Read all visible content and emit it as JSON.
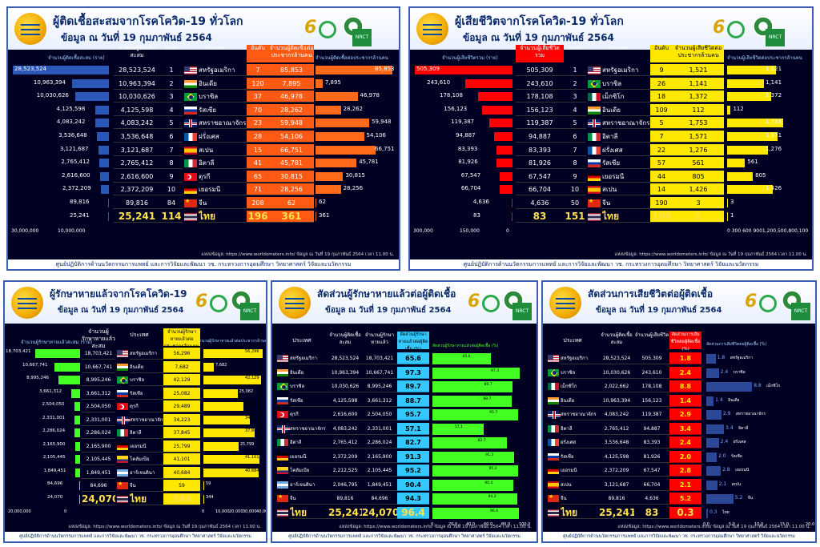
{
  "colors": {
    "panel_bg": "#000022",
    "blue_bar": "#2a58b8",
    "red_bar": "#ff0000",
    "orange_col": "#ff5a14",
    "yellow_bar": "#ffe800",
    "green_bar": "#44ff22",
    "cyan_col": "#33c8ff",
    "red_col": "#ff0000"
  },
  "flags": [
    "us",
    "in",
    "br",
    "ru",
    "gb",
    "fr",
    "es",
    "it",
    "tr",
    "de",
    "cn",
    "th",
    "mx",
    "co",
    "ar"
  ],
  "footer_text": "ศูนย์ปฏิบัติการด้านนวัตกรรมการแพทย์ และการวิจัยและพัฒนา วช. กระทรวงการอุดมศึกษา วิทยาศาสตร์ วิจัยและนวัตกรรม",
  "source_text": "แหล่งข้อมูล: https://www.worldometers.info/ ข้อมูล ณ วันที่ 19 กุมภาพันธ์ 2564 เวลา 11.00 น.",
  "date_text": "ข้อมูล ณ วันที่ 19 กุมภาพันธ์ 2564",
  "panel1": {
    "title": "ผู้ติดเชื้อสะสมจากโรคโควิด-19 ทั่วโลก",
    "col_cases": "จำนวนผู้ติดเชื้อสะสม",
    "col_rank": "อันดับ",
    "col_country": "ประเทศ",
    "col_rank2": "อันดับ",
    "col_per_m": "จำนวนผู้ติดเชื้อต่อประชากรล้านคน",
    "left_axis_title": "จำนวนผู้ติดเชื้อสะสม (ราย)",
    "right_axis_title": "จำนวนผู้ติดเชื้อต่อประชากรล้านคน",
    "left_ticks": [
      "30,000,000",
      "10,000,000"
    ],
    "rows": [
      {
        "cases": "28,523,524",
        "rank": "1",
        "country": "สหรัฐอเมริกา",
        "flag": "us",
        "rank2": "7",
        "perm": "85,853"
      },
      {
        "cases": "10,963,394",
        "rank": "2",
        "country": "อินเดีย",
        "flag": "in",
        "rank2": "120",
        "perm": "7,895"
      },
      {
        "cases": "10,030,626",
        "rank": "3",
        "country": "บราซิล",
        "flag": "br",
        "rank2": "37",
        "perm": "46,978"
      },
      {
        "cases": "4,125,598",
        "rank": "4",
        "country": "รัสเซีย",
        "flag": "ru",
        "rank2": "70",
        "perm": "28,262"
      },
      {
        "cases": "4,083,242",
        "rank": "5",
        "country": "สหราชอาณาจักร",
        "flag": "gb",
        "rank2": "23",
        "perm": "59,948"
      },
      {
        "cases": "3,536,648",
        "rank": "6",
        "country": "ฝรั่งเศส",
        "flag": "fr",
        "rank2": "28",
        "perm": "54,106"
      },
      {
        "cases": "3,121,687",
        "rank": "7",
        "country": "สเปน",
        "flag": "es",
        "rank2": "15",
        "perm": "66,751"
      },
      {
        "cases": "2,765,412",
        "rank": "8",
        "country": "อิตาลี",
        "flag": "it",
        "rank2": "41",
        "perm": "45,781"
      },
      {
        "cases": "2,616,600",
        "rank": "9",
        "country": "ตุรกี",
        "flag": "tr",
        "rank2": "65",
        "perm": "30,815"
      },
      {
        "cases": "2,372,209",
        "rank": "10",
        "country": "เยอรมนี",
        "flag": "de",
        "rank2": "71",
        "perm": "28,256"
      },
      {
        "cases": "89,816",
        "rank": "84",
        "country": "จีน",
        "flag": "cn",
        "rank2": "208",
        "perm": "62"
      },
      {
        "cases": "25,241",
        "rank": "114",
        "country": "ไทย",
        "flag": "th",
        "rank2": "196",
        "perm": "361"
      }
    ]
  },
  "panel2": {
    "title": "ผู้เสียชีวิตจากโรคโควิด-19 ทั่วโลก",
    "col_deaths": "จำนวนผู้เสียชีวิตรวม",
    "col_rank": "อันดับ",
    "col_country": "ประเทศ",
    "col_rank2": "อันดับ",
    "col_per_m": "จำนวนผู้เสียชีวิตต่อประชากรล้านคน",
    "left_axis_title": "จำนวนผู้เสียชีวิตรวม (ราย)",
    "right_axis_title": "จำนวนผู้เสียชีวิตต่อประชากรล้านคน",
    "left_ticks": [
      "300,000",
      "150,000",
      "0"
    ],
    "right_ticks": "0 300 600 9001,200,500,800,100",
    "rows": [
      {
        "deaths": "505,309",
        "rank": "1",
        "country": "สหรัฐอเมริกา",
        "flag": "us",
        "rank2": "9",
        "perm": "1,521"
      },
      {
        "deaths": "243,610",
        "rank": "2",
        "country": "บราซิล",
        "flag": "br",
        "rank2": "26",
        "perm": "1,141"
      },
      {
        "deaths": "178,108",
        "rank": "3",
        "country": "เม็กซิโก",
        "flag": "mx",
        "rank2": "18",
        "perm": "1,372"
      },
      {
        "deaths": "156,123",
        "rank": "4",
        "country": "อินเดีย",
        "flag": "in",
        "rank2": "109",
        "perm": "112"
      },
      {
        "deaths": "119,387",
        "rank": "5",
        "country": "สหราชอาณาจักร",
        "flag": "gb",
        "rank2": "5",
        "perm": "1,753"
      },
      {
        "deaths": "94,887",
        "rank": "6",
        "country": "อิตาลี",
        "flag": "it",
        "rank2": "7",
        "perm": "1,571"
      },
      {
        "deaths": "83,393",
        "rank": "7",
        "country": "ฝรั่งเศส",
        "flag": "fr",
        "rank2": "22",
        "perm": "1,276"
      },
      {
        "deaths": "81,926",
        "rank": "8",
        "country": "รัสเซีย",
        "flag": "ru",
        "rank2": "57",
        "perm": "561"
      },
      {
        "deaths": "67,547",
        "rank": "9",
        "country": "เยอรมนี",
        "flag": "de",
        "rank2": "44",
        "perm": "805"
      },
      {
        "deaths": "66,704",
        "rank": "10",
        "country": "สเปน",
        "flag": "es",
        "rank2": "14",
        "perm": "1,426"
      },
      {
        "deaths": "4,636",
        "rank": "50",
        "country": "จีน",
        "flag": "cn",
        "rank2": "190",
        "perm": "3"
      },
      {
        "deaths": "83",
        "rank": "151",
        "country": "ไทย",
        "flag": "th",
        "rank2": "194",
        "perm": "1"
      }
    ]
  },
  "panel3": {
    "title": "ผู้รักษาหายแล้วจากโรคโควิด-19",
    "col_rec": "จำนวนผู้รักษาหายแล้วสะสม",
    "col_country": "ประเทศ",
    "col_per_m": "จำนวนผู้รักษาหายแล้วต่อประชากรล้านคน",
    "left_axis_title": "จำนวนผู้รักษาหายแล้วสะสม (ราย)",
    "right_axis_title": "จำนวนผู้รักษาหายแล้วต่อประชากรล้านคน",
    "left_ticks": [
      "20,000,000",
      "0"
    ],
    "right_ticks": [
      "0",
      "10,000",
      "20,000",
      "30,000",
      "40,000"
    ],
    "rows": [
      {
        "rec": "18,703,421",
        "country": "สหรัฐอเมริกา",
        "flag": "us",
        "perm": "56,296"
      },
      {
        "rec": "10,667,741",
        "country": "อินเดีย",
        "flag": "in",
        "perm": "7,682"
      },
      {
        "rec": "8,995,246",
        "country": "บราซิล",
        "flag": "br",
        "perm": "42,129"
      },
      {
        "rec": "3,661,312",
        "country": "รัสเซีย",
        "flag": "ru",
        "perm": "25,082"
      },
      {
        "rec": "2,504,050",
        "country": "ตุรกี",
        "flag": "tr",
        "perm": "29,489"
      },
      {
        "rec": "2,331,001",
        "country": "สหราชอาณาจักร",
        "flag": "gb",
        "perm": "34,223"
      },
      {
        "rec": "2,286,024",
        "country": "อิตาลี",
        "flag": "it",
        "perm": "37,845"
      },
      {
        "rec": "2,165,900",
        "country": "เยอรมนี",
        "flag": "de",
        "perm": "25,799"
      },
      {
        "rec": "2,105,445",
        "country": "โคลัมเบีย",
        "flag": "co",
        "perm": "41,101"
      },
      {
        "rec": "1,849,451",
        "country": "อาร์เจนตินา",
        "flag": "ar",
        "perm": "40,684"
      },
      {
        "rec": "84,696",
        "country": "จีน",
        "flag": "cn",
        "perm": "59"
      },
      {
        "rec": "24,070",
        "country": "ไทย",
        "flag": "th",
        "perm": "344"
      }
    ]
  },
  "panel4": {
    "title": "สัดส่วนผู้รักษาหายแล้วต่อผู้ติดเชื้อ",
    "col_country": "ประเทศ",
    "col_cases": "จำนวนผู้ติดเชื้อสะสม",
    "col_rec": "จำนวนผู้รักษาหายแล้ว",
    "col_ratio": "สัดส่วนผู้รักษาหายแล้วต่อผู้ติดเชื้อ (%)",
    "chart_title": "สัดส่วนผู้รักษาหายแล้วต่อผู้ติดเชื้อ (%)",
    "ticks": [
      "0",
      "20.0",
      "40.0",
      "60.0",
      "80.0",
      "100.0"
    ],
    "rows": [
      {
        "country": "สหรัฐอเมริกา",
        "flag": "us",
        "cases": "28,523,524",
        "rec": "18,703,421",
        "ratio": "65.6"
      },
      {
        "country": "อินเดีย",
        "flag": "in",
        "cases": "10,963,394",
        "rec": "10,667,741",
        "ratio": "97.3"
      },
      {
        "country": "บราซิล",
        "flag": "br",
        "cases": "10,030,626",
        "rec": "8,995,246",
        "ratio": "89.7"
      },
      {
        "country": "รัสเซีย",
        "flag": "ru",
        "cases": "4,125,598",
        "rec": "3,661,312",
        "ratio": "88.7"
      },
      {
        "country": "ตุรกี",
        "flag": "tr",
        "cases": "2,616,600",
        "rec": "2,504,050",
        "ratio": "95.7"
      },
      {
        "country": "สหราชอาณาจักร",
        "flag": "gb",
        "cases": "4,083,242",
        "rec": "2,331,001",
        "ratio": "57.1"
      },
      {
        "country": "อิตาลี",
        "flag": "it",
        "cases": "2,765,412",
        "rec": "2,286,024",
        "ratio": "82.7"
      },
      {
        "country": "เยอรมนี",
        "flag": "de",
        "cases": "2,372,209",
        "rec": "2,165,900",
        "ratio": "91.3"
      },
      {
        "country": "โคลัมเบีย",
        "flag": "co",
        "cases": "2,212,525",
        "rec": "2,105,445",
        "ratio": "95.2"
      },
      {
        "country": "อาร์เจนตินา",
        "flag": "ar",
        "cases": "2,046,795",
        "rec": "1,849,451",
        "ratio": "90.4"
      },
      {
        "country": "จีน",
        "flag": "cn",
        "cases": "89,816",
        "rec": "84,696",
        "ratio": "94.3"
      },
      {
        "country": "ไทย",
        "flag": "th",
        "cases": "25,241",
        "rec": "24,070",
        "ratio": "96.4"
      }
    ]
  },
  "panel5": {
    "title": "สัดส่วนการเสียชีวิตต่อผู้ติดเชื้อ",
    "col_country": "ประเทศ",
    "col_cases": "จำนวนผู้ติดเชื้อสะสม",
    "col_deaths": "จำนวนผู้เสียชีวิต",
    "col_ratio": "สัดส่วนการเสียชีวิตต่อผู้ติดเชื้อ (%)",
    "chart_title": "สัดส่วนการเสียชีวิตต่อผู้ติดเชื้อ (%)",
    "ticks": [
      "0.0",
      "5.0",
      "10.0",
      "15.0",
      "20.0"
    ],
    "rows": [
      {
        "country": "สหรัฐอเมริกา",
        "flag": "us",
        "cases": "28,523,524",
        "deaths": "505,309",
        "ratio": "1.8"
      },
      {
        "country": "บราซิล",
        "flag": "br",
        "cases": "10,030,626",
        "deaths": "243,610",
        "ratio": "2.4"
      },
      {
        "country": "เม็กซิโก",
        "flag": "mx",
        "cases": "2,022,662",
        "deaths": "178,108",
        "ratio": "8.8"
      },
      {
        "country": "อินเดีย",
        "flag": "in",
        "cases": "10,963,394",
        "deaths": "156,123",
        "ratio": "1.4"
      },
      {
        "country": "สหราชอาณาจักร",
        "flag": "gb",
        "cases": "4,083,242",
        "deaths": "119,387",
        "ratio": "2.9"
      },
      {
        "country": "อิตาลี",
        "flag": "it",
        "cases": "2,765,412",
        "deaths": "94,887",
        "ratio": "3.4"
      },
      {
        "country": "ฝรั่งเศส",
        "flag": "fr",
        "cases": "3,536,648",
        "deaths": "83,393",
        "ratio": "2.4"
      },
      {
        "country": "รัสเซีย",
        "flag": "ru",
        "cases": "4,125,598",
        "deaths": "81,926",
        "ratio": "2.0"
      },
      {
        "country": "เยอรมนี",
        "flag": "de",
        "cases": "2,372,209",
        "deaths": "67,547",
        "ratio": "2.8"
      },
      {
        "country": "สเปน",
        "flag": "es",
        "cases": "3,121,687",
        "deaths": "66,704",
        "ratio": "2.1"
      },
      {
        "country": "จีน",
        "flag": "cn",
        "cases": "89,816",
        "deaths": "4,636",
        "ratio": "5.2"
      },
      {
        "country": "ไทย",
        "flag": "th",
        "cases": "25,241",
        "deaths": "83",
        "ratio": "0.3"
      }
    ]
  },
  "chart_data": [
    {
      "type": "bar",
      "title": "ผู้ติดเชื้อสะสมจากโรคโควิด-19 ทั่วโลก",
      "categories": [
        "สหรัฐอเมริกา",
        "อินเดีย",
        "บราซิล",
        "รัสเซีย",
        "สหราชอาณาจักร",
        "ฝรั่งเศส",
        "สเปน",
        "อิตาลี",
        "ตุรกี",
        "เยอรมนี",
        "จีน",
        "ไทย"
      ],
      "series": [
        {
          "name": "จำนวนผู้ติดเชื้อสะสม (ราย)",
          "values": [
            28523524,
            10963394,
            10030626,
            4125598,
            4083242,
            3536648,
            3121687,
            2765412,
            2616600,
            2372209,
            89816,
            25241
          ]
        },
        {
          "name": "จำนวนผู้ติดเชื้อต่อประชากรล้านคน",
          "values": [
            85853,
            7895,
            46978,
            28262,
            59948,
            54106,
            66751,
            45781,
            30815,
            28256,
            62,
            361
          ]
        }
      ]
    },
    {
      "type": "bar",
      "title": "ผู้เสียชีวิตจากโรคโควิด-19 ทั่วโลก",
      "categories": [
        "สหรัฐอเมริกา",
        "บราซิล",
        "เม็กซิโก",
        "อินเดีย",
        "สหราชอาณาจักร",
        "อิตาลี",
        "ฝรั่งเศส",
        "รัสเซีย",
        "เยอรมนี",
        "สเปน",
        "จีน",
        "ไทย"
      ],
      "series": [
        {
          "name": "จำนวนผู้เสียชีวิตรวม (ราย)",
          "values": [
            505309,
            243610,
            178108,
            156123,
            119387,
            94887,
            83393,
            81926,
            67547,
            66704,
            4636,
            83
          ]
        },
        {
          "name": "จำนวนผู้เสียชีวิตต่อประชากรล้านคน",
          "values": [
            1521,
            1141,
            1372,
            112,
            1753,
            1571,
            1276,
            561,
            805,
            1426,
            3,
            1
          ]
        }
      ]
    },
    {
      "type": "bar",
      "title": "ผู้รักษาหายแล้วจากโรคโควิด-19",
      "categories": [
        "สหรัฐอเมริกา",
        "อินเดีย",
        "บราซิล",
        "รัสเซีย",
        "ตุรกี",
        "สหราชอาณาจักร",
        "อิตาลี",
        "เยอรมนี",
        "โคลัมเบีย",
        "อาร์เจนตินา",
        "จีน",
        "ไทย"
      ],
      "series": [
        {
          "name": "จำนวนผู้รักษาหายแล้วสะสม (ราย)",
          "values": [
            18703421,
            10667741,
            8995246,
            3661312,
            2504050,
            2331001,
            2286024,
            2165900,
            2105445,
            1849451,
            84696,
            24070
          ]
        },
        {
          "name": "จำนวนผู้รักษาหายแล้วต่อประชากรล้านคน",
          "values": [
            56296,
            7682,
            42129,
            25082,
            29489,
            34223,
            37845,
            25799,
            41101,
            40684,
            59,
            344
          ]
        }
      ]
    },
    {
      "type": "bar",
      "title": "สัดส่วนผู้รักษาหายแล้วต่อผู้ติดเชื้อ",
      "categories": [
        "สหรัฐอเมริกา",
        "อินเดีย",
        "บราซิล",
        "รัสเซีย",
        "ตุรกี",
        "สหราชอาณาจักร",
        "อิตาลี",
        "เยอรมนี",
        "โคลัมเบีย",
        "อาร์เจนตินา",
        "จีน",
        "ไทย"
      ],
      "series": [
        {
          "name": "สัดส่วนผู้รักษาหายแล้วต่อผู้ติดเชื้อ (%)",
          "values": [
            65.6,
            97.3,
            89.7,
            88.7,
            95.7,
            57.1,
            82.7,
            91.3,
            95.2,
            90.4,
            94.3,
            96.4
          ]
        }
      ],
      "xlim": [
        0,
        100
      ]
    },
    {
      "type": "bar",
      "title": "สัดส่วนการเสียชีวิตต่อผู้ติดเชื้อ",
      "categories": [
        "สหรัฐอเมริกา",
        "บราซิล",
        "เม็กซิโก",
        "อินเดีย",
        "สหราชอาณาจักร",
        "อิตาลี",
        "ฝรั่งเศส",
        "รัสเซีย",
        "เยอรมนี",
        "สเปน",
        "จีน",
        "ไทย"
      ],
      "series": [
        {
          "name": "สัดส่วนการเสียชีวิตต่อผู้ติดเชื้อ (%)",
          "values": [
            1.8,
            2.4,
            8.8,
            1.4,
            2.9,
            3.4,
            2.4,
            2.0,
            2.8,
            2.1,
            5.2,
            0.3
          ]
        }
      ],
      "xlim": [
        0,
        20
      ]
    }
  ]
}
